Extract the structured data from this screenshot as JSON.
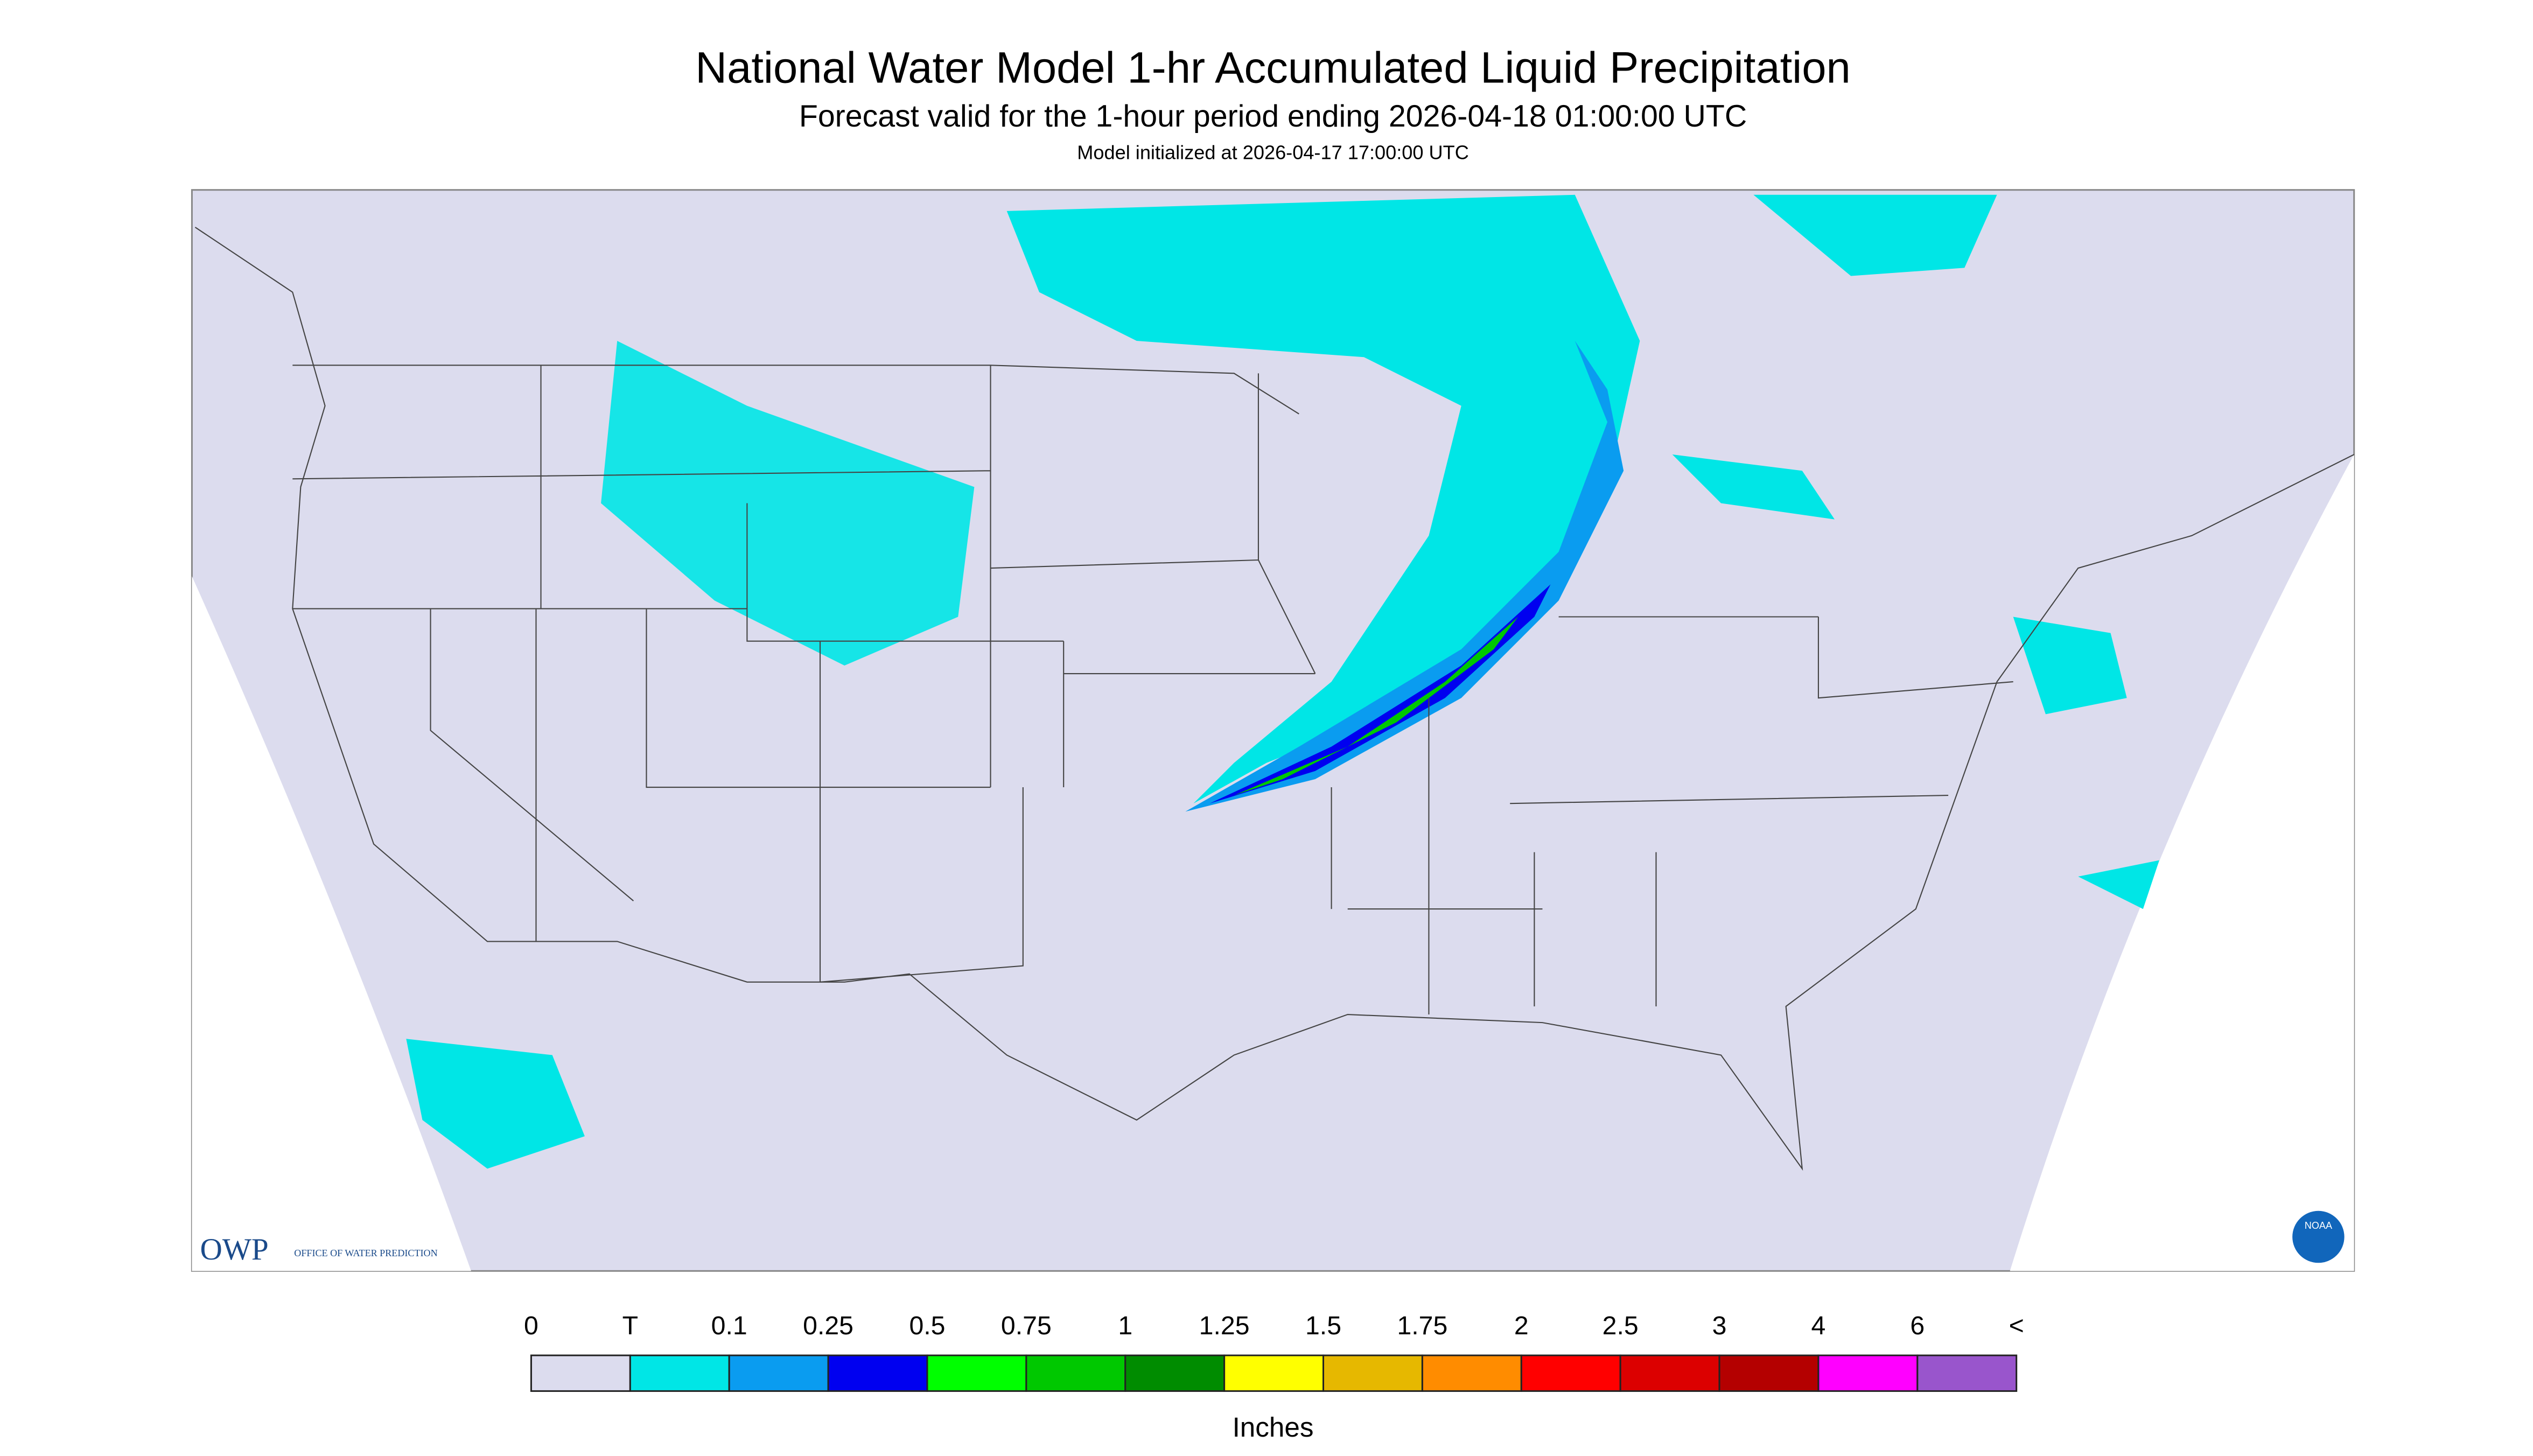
{
  "header": {
    "title": "National Water Model 1-hr Accumulated Liquid Precipitation",
    "subtitle": "Forecast valid for the 1-hour period ending 2026-04-18 01:00:00 UTC",
    "note": "Model initialized at 2026-04-17 17:00:00 UTC"
  },
  "colorbar": {
    "labels": [
      "0",
      "T",
      "0.1",
      "0.25",
      "0.5",
      "0.75",
      "1",
      "1.25",
      "1.5",
      "1.75",
      "2",
      "2.5",
      "3",
      "4",
      "6",
      "<"
    ],
    "colors": [
      "#dcdcee",
      "#00e6e6",
      "#0a9cf0",
      "#0000f0",
      "#00ff00",
      "#00c800",
      "#008c00",
      "#ffff00",
      "#e6b800",
      "#ff8c00",
      "#ff0000",
      "#dc0000",
      "#b40000",
      "#ff00ff",
      "#9955cc"
    ],
    "unit": "Inches"
  },
  "logo": {
    "name": "OWP",
    "text": "OFFICE OF WATER PREDICTION",
    "badge": "NOAA"
  }
}
